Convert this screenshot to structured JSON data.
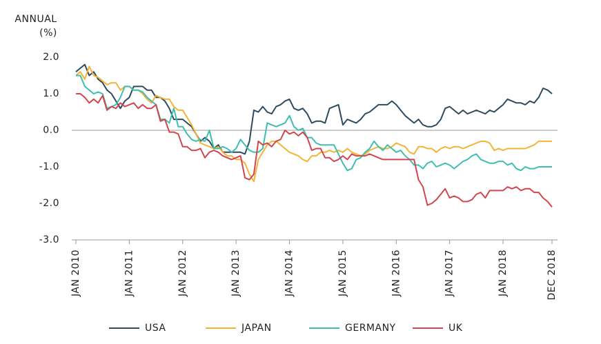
{
  "chart_data": {
    "type": "line",
    "y_label": [
      "ANNUAL",
      "(%)"
    ],
    "categories": [
      "JAN 2010",
      null,
      null,
      null,
      null,
      null,
      null,
      null,
      null,
      null,
      null,
      null,
      "JAN 2011",
      null,
      null,
      null,
      null,
      null,
      null,
      null,
      null,
      null,
      null,
      null,
      "JAN 2012",
      null,
      null,
      null,
      null,
      null,
      null,
      null,
      null,
      null,
      null,
      null,
      "JAN 2013",
      null,
      null,
      null,
      null,
      null,
      null,
      null,
      null,
      null,
      null,
      null,
      "JAN 2014",
      null,
      null,
      null,
      null,
      null,
      null,
      null,
      null,
      null,
      null,
      null,
      "JAN 2015",
      null,
      null,
      null,
      null,
      null,
      null,
      null,
      null,
      null,
      null,
      null,
      "JAN 2016",
      null,
      null,
      null,
      null,
      null,
      null,
      null,
      null,
      null,
      null,
      null,
      "JAN 2017",
      null,
      null,
      null,
      null,
      null,
      null,
      null,
      null,
      null,
      null,
      null,
      "JAN 2018",
      null,
      null,
      null,
      null,
      null,
      null,
      null,
      null,
      null,
      null,
      "DEC 2018"
    ],
    "series": [
      {
        "name": "USA",
        "color": "#2d4a5e",
        "values": [
          1.6,
          1.7,
          1.8,
          1.5,
          1.6,
          1.4,
          1.3,
          1.1,
          1.0,
          0.8,
          0.6,
          0.8,
          0.9,
          1.2,
          1.2,
          1.2,
          1.1,
          1.1,
          0.9,
          0.9,
          0.8,
          0.6,
          0.3,
          0.3,
          0.3,
          0.2,
          0.1,
          -0.1,
          -0.3,
          -0.2,
          -0.3,
          -0.5,
          -0.4,
          -0.6,
          -0.6,
          -0.6,
          -0.6,
          -0.6,
          -0.65,
          -0.3,
          0.55,
          0.5,
          0.65,
          0.5,
          0.45,
          0.65,
          0.7,
          0.8,
          0.85,
          0.6,
          0.55,
          0.6,
          0.45,
          0.2,
          0.25,
          0.25,
          0.2,
          0.6,
          0.65,
          0.7,
          0.15,
          0.3,
          0.25,
          0.2,
          0.3,
          0.45,
          0.5,
          0.6,
          0.7,
          0.7,
          0.7,
          0.8,
          0.7,
          0.55,
          0.4,
          0.3,
          0.2,
          0.3,
          0.15,
          0.1,
          0.1,
          0.15,
          0.3,
          0.6,
          0.65,
          0.55,
          0.45,
          0.55,
          0.45,
          0.5,
          0.55,
          0.5,
          0.45,
          0.55,
          0.5,
          0.6,
          0.7,
          0.85,
          0.8,
          0.75,
          0.75,
          0.7,
          0.8,
          0.75,
          0.9,
          1.15,
          1.1,
          1.0
        ]
      },
      {
        "name": "JAPAN",
        "color": "#f5b335",
        "values": [
          1.5,
          1.6,
          1.4,
          1.75,
          1.5,
          1.45,
          1.35,
          1.25,
          1.3,
          1.3,
          1.1,
          1.2,
          1.2,
          1.1,
          1.1,
          1.0,
          0.85,
          0.75,
          0.95,
          0.9,
          0.85,
          0.85,
          0.65,
          0.55,
          0.55,
          0.35,
          0.15,
          -0.1,
          -0.35,
          -0.4,
          -0.45,
          -0.5,
          -0.45,
          -0.6,
          -0.7,
          -0.7,
          -0.8,
          -0.8,
          -0.9,
          -1.2,
          -1.4,
          -0.8,
          -0.6,
          -0.4,
          -0.3,
          -0.3,
          -0.4,
          -0.5,
          -0.6,
          -0.65,
          -0.7,
          -0.8,
          -0.85,
          -0.7,
          -0.7,
          -0.6,
          -0.6,
          -0.55,
          -0.6,
          -0.55,
          -0.6,
          -0.5,
          -0.6,
          -0.65,
          -0.7,
          -0.65,
          -0.55,
          -0.5,
          -0.45,
          -0.5,
          -0.5,
          -0.45,
          -0.35,
          -0.4,
          -0.45,
          -0.6,
          -0.65,
          -0.45,
          -0.45,
          -0.5,
          -0.5,
          -0.6,
          -0.5,
          -0.45,
          -0.5,
          -0.45,
          -0.45,
          -0.5,
          -0.45,
          -0.4,
          -0.35,
          -0.3,
          -0.3,
          -0.35,
          -0.55,
          -0.5,
          -0.55,
          -0.5,
          -0.5,
          -0.5,
          -0.5,
          -0.5,
          -0.45,
          -0.4,
          -0.3,
          -0.3,
          -0.3,
          -0.3
        ]
      },
      {
        "name": "GERMANY",
        "color": "#3dbfb0",
        "values": [
          1.5,
          1.5,
          1.2,
          1.1,
          1.0,
          1.05,
          1.0,
          0.6,
          0.65,
          0.7,
          0.9,
          1.2,
          1.2,
          1.1,
          1.1,
          1.05,
          0.9,
          0.8,
          0.7,
          0.3,
          0.3,
          0.2,
          0.6,
          0.1,
          0.1,
          -0.1,
          -0.25,
          -0.3,
          -0.25,
          -0.3,
          0.0,
          -0.5,
          -0.5,
          -0.45,
          -0.5,
          -0.6,
          -0.5,
          -0.25,
          -0.4,
          -0.55,
          -0.6,
          -0.6,
          -0.5,
          0.2,
          0.15,
          0.1,
          0.15,
          0.2,
          0.4,
          0.1,
          0.0,
          0.05,
          -0.2,
          -0.2,
          -0.35,
          -0.4,
          -0.4,
          -0.4,
          -0.4,
          -0.65,
          -0.9,
          -1.1,
          -1.05,
          -0.8,
          -0.75,
          -0.6,
          -0.5,
          -0.3,
          -0.45,
          -0.55,
          -0.4,
          -0.5,
          -0.6,
          -0.55,
          -0.7,
          -0.8,
          -0.95,
          -0.95,
          -1.05,
          -0.9,
          -0.85,
          -1.0,
          -0.95,
          -0.9,
          -0.95,
          -1.05,
          -0.95,
          -0.85,
          -0.8,
          -0.7,
          -0.65,
          -0.8,
          -0.85,
          -0.9,
          -0.9,
          -0.85,
          -0.85,
          -0.95,
          -0.9,
          -1.05,
          -1.1,
          -1.0,
          -1.05,
          -1.05,
          -1.0,
          -1.0,
          -1.0,
          -1.0
        ]
      },
      {
        "name": "UK",
        "color": "#d2454e",
        "values": [
          1.0,
          1.0,
          0.9,
          0.75,
          0.85,
          0.75,
          0.95,
          0.55,
          0.65,
          0.6,
          0.75,
          0.65,
          0.7,
          0.75,
          0.6,
          0.7,
          0.6,
          0.6,
          0.7,
          0.25,
          0.3,
          -0.05,
          -0.05,
          -0.1,
          -0.45,
          -0.45,
          -0.55,
          -0.55,
          -0.5,
          -0.75,
          -0.6,
          -0.55,
          -0.6,
          -0.7,
          -0.75,
          -0.8,
          -0.75,
          -0.7,
          -1.3,
          -1.35,
          -1.2,
          -0.3,
          -0.4,
          -0.35,
          -0.45,
          -0.3,
          -0.25,
          0.0,
          -0.1,
          -0.05,
          -0.15,
          -0.05,
          -0.2,
          -0.55,
          -0.5,
          -0.5,
          -0.75,
          -0.75,
          -0.85,
          -0.8,
          -0.7,
          -0.8,
          -0.65,
          -0.7,
          -0.7,
          -0.7,
          -0.65,
          -0.7,
          -0.75,
          -0.8,
          -0.8,
          -0.8,
          -0.8,
          -0.8,
          -0.8,
          -0.8,
          -0.8,
          -1.35,
          -1.55,
          -2.05,
          -2.0,
          -1.9,
          -1.75,
          -1.6,
          -1.85,
          -1.8,
          -1.85,
          -1.95,
          -1.95,
          -1.9,
          -1.75,
          -1.7,
          -1.85,
          -1.65,
          -1.65,
          -1.65,
          -1.65,
          -1.55,
          -1.6,
          -1.55,
          -1.65,
          -1.6,
          -1.6,
          -1.7,
          -1.7,
          -1.85,
          -1.95,
          -2.1
        ]
      }
    ],
    "ylim": [
      -3,
      2
    ],
    "yticks": [
      {
        "value": 2,
        "label": "2.0"
      },
      {
        "value": 1,
        "label": "1.0"
      },
      {
        "value": 0,
        "label": "0.0"
      },
      {
        "value": -1,
        "label": "-1.0"
      },
      {
        "value": -2,
        "label": "-2.0"
      },
      {
        "value": -3,
        "label": "-3.0"
      }
    ],
    "zero_line": true,
    "legend": "bottom"
  }
}
